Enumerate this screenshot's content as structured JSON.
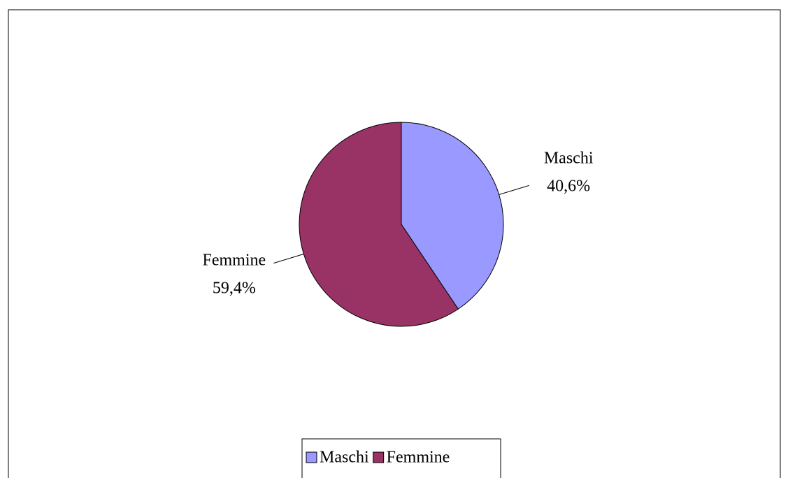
{
  "chart_data": {
    "type": "pie",
    "categories": [
      "Maschi",
      "Femmine"
    ],
    "values": [
      40.6,
      59.4
    ],
    "value_labels": [
      "40,6%",
      "59,4%"
    ],
    "colors": [
      "#9999ff",
      "#993366"
    ],
    "legend": "bottom"
  }
}
